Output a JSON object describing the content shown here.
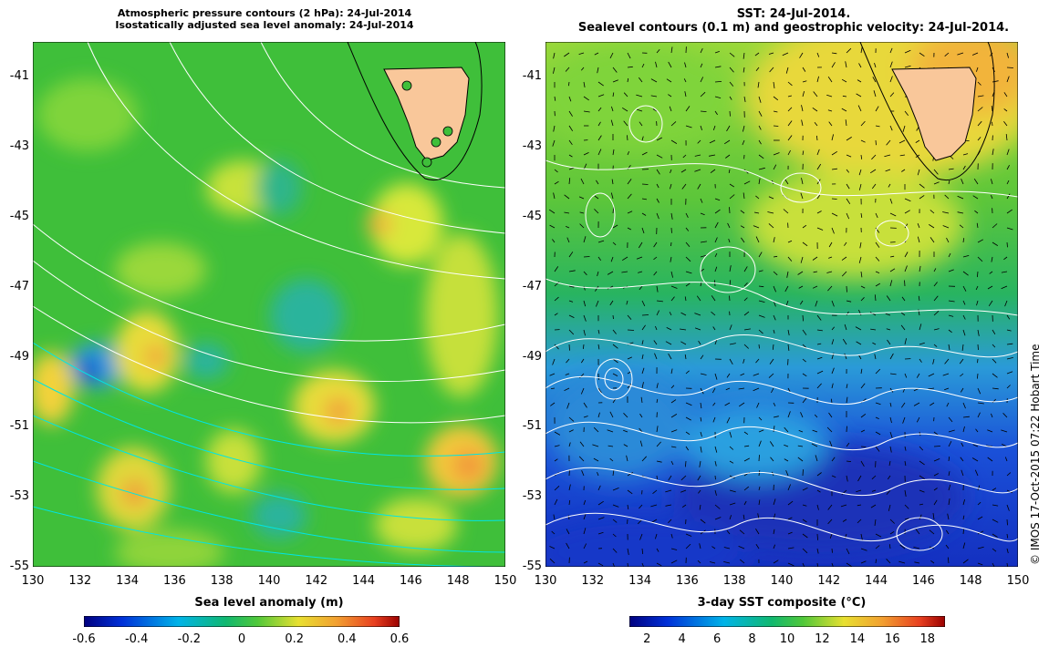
{
  "left_panel": {
    "title_line1": "Atmospheric pressure contours (2 hPa): 24-Jul-2014",
    "title_line2": "Isostatically adjusted sea level anomaly: 24-Jul-2014",
    "x_ticks": [
      "130",
      "132",
      "134",
      "136",
      "138",
      "140",
      "142",
      "144",
      "146",
      "148",
      "150"
    ],
    "y_ticks": [
      "-41",
      "-43",
      "-45",
      "-47",
      "-49",
      "-51",
      "-53",
      "-55"
    ],
    "colorbar_label": "Sea level anomaly (m)",
    "colorbar_ticks": [
      "-0.6",
      "-0.4",
      "-0.2",
      "0",
      "0.2",
      "0.4",
      "0.6"
    ],
    "colorbar_range": [
      -0.6,
      0.6
    ]
  },
  "right_panel": {
    "title_line1": "SST: 24-Jul-2014.",
    "title_line2": "Sealevel contours (0.1 m) and geostrophic velocity: 24-Jul-2014.",
    "x_ticks": [
      "130",
      "132",
      "134",
      "136",
      "138",
      "140",
      "142",
      "144",
      "146",
      "148",
      "150"
    ],
    "y_ticks": [
      "-41",
      "-43",
      "-45",
      "-47",
      "-49",
      "-51",
      "-53",
      "-55"
    ],
    "colorbar_label": "3-day SST composite (°C)",
    "colorbar_ticks": [
      "2",
      "4",
      "6",
      "8",
      "10",
      "12",
      "14",
      "16",
      "18"
    ],
    "colorbar_range": [
      1,
      19
    ]
  },
  "map_extent": {
    "lon": [
      130,
      150
    ],
    "lat": [
      -55,
      -40
    ]
  },
  "credit": "© IMOS 17-Oct-2015 07:22 Hobart Time",
  "colors": {
    "land": "#f9c79a",
    "contour": "#ffffff",
    "pressure_contour": "#00e5e5"
  }
}
